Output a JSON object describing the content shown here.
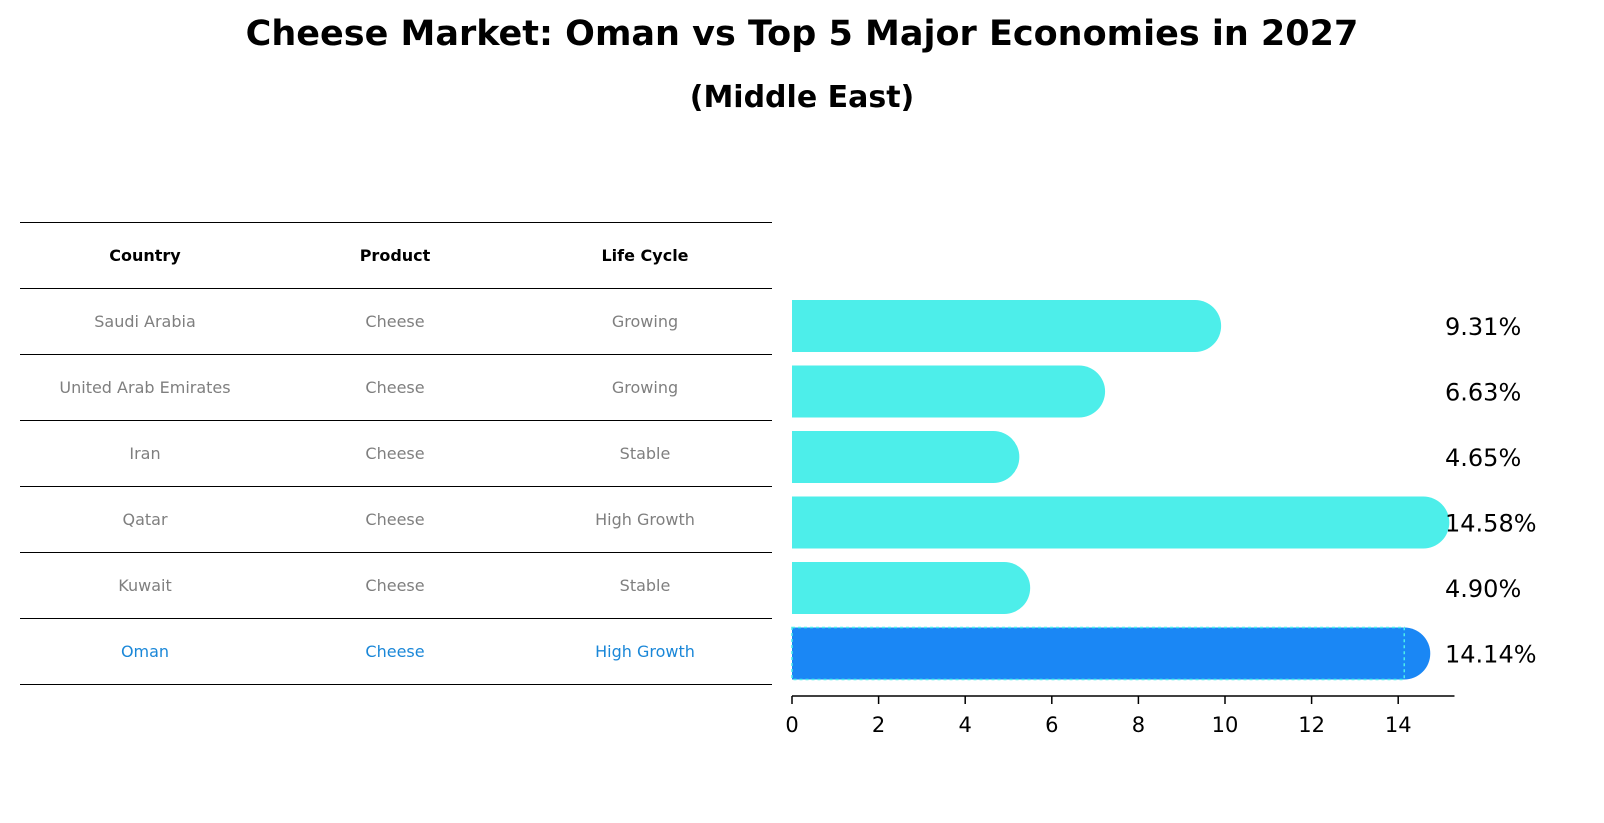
{
  "title": "Cheese Market: Oman vs Top 5 Major Economies in 2027",
  "subtitle": "(Middle East)",
  "table": {
    "headers": [
      "Country",
      "Product",
      "Life Cycle"
    ],
    "rows": [
      [
        "Saudi Arabia",
        "Cheese",
        "Growing"
      ],
      [
        "United Arab Emirates",
        "Cheese",
        "Growing"
      ],
      [
        "Iran",
        "Cheese",
        "Stable"
      ],
      [
        "Qatar",
        "Cheese",
        "High Growth"
      ],
      [
        "Kuwait",
        "Cheese",
        "Stable"
      ],
      [
        "Oman",
        "Cheese",
        "High Growth"
      ]
    ],
    "highlight_row": 5
  },
  "chart_data": {
    "type": "bar",
    "orientation": "horizontal",
    "categories": [
      "Saudi Arabia",
      "United Arab Emirates",
      "Iran",
      "Qatar",
      "Kuwait",
      "Oman"
    ],
    "values": [
      9.31,
      6.63,
      4.65,
      14.58,
      4.9,
      14.14
    ],
    "value_labels": [
      "9.31%",
      "6.63%",
      "4.65%",
      "14.58%",
      "4.90%",
      "14.14%"
    ],
    "xticks": [
      "0",
      "2",
      "4",
      "6",
      "8",
      "10",
      "12",
      "14"
    ],
    "xlim": [
      0,
      15.3
    ],
    "highlight_index": 5,
    "colors": {
      "default": "#4deeea",
      "highlight": "#1a87f5",
      "highlight_text": "#1a87d8"
    },
    "grid": false
  }
}
